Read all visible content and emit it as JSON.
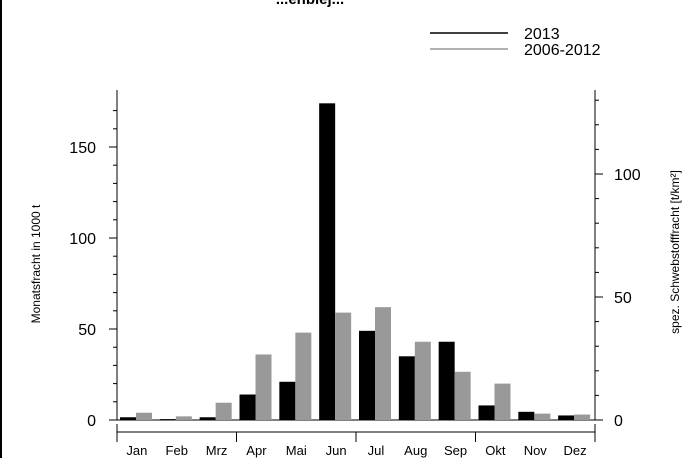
{
  "chart_data": {
    "type": "bar",
    "title": "...enblej...",
    "categories": [
      "Jan",
      "Feb",
      "Mrz",
      "Apr",
      "Mai",
      "Jun",
      "Jul",
      "Aug",
      "Sep",
      "Okt",
      "Nov",
      "Dez"
    ],
    "series": [
      {
        "name": "2013",
        "color": "#000000",
        "values": [
          1.5,
          0.5,
          1.5,
          14,
          21,
          174,
          49,
          35,
          43,
          8,
          4.5,
          2.5
        ]
      },
      {
        "name": "2006-2012",
        "color": "#999999",
        "values": [
          4,
          2,
          9.5,
          36,
          48,
          59,
          62,
          43,
          26.5,
          20,
          3.5,
          3
        ]
      }
    ],
    "ylabel": "Monatsfracht in 1000 t",
    "ylabel_right": "spez. Schwebstofffracht [t/km²]",
    "ylim": [
      0,
      180
    ],
    "yticks": [
      0,
      50,
      100,
      150
    ],
    "ylim_right": [
      0,
      134
    ],
    "yticks_right": [
      0,
      50,
      100
    ],
    "legend_position": "top-right"
  }
}
